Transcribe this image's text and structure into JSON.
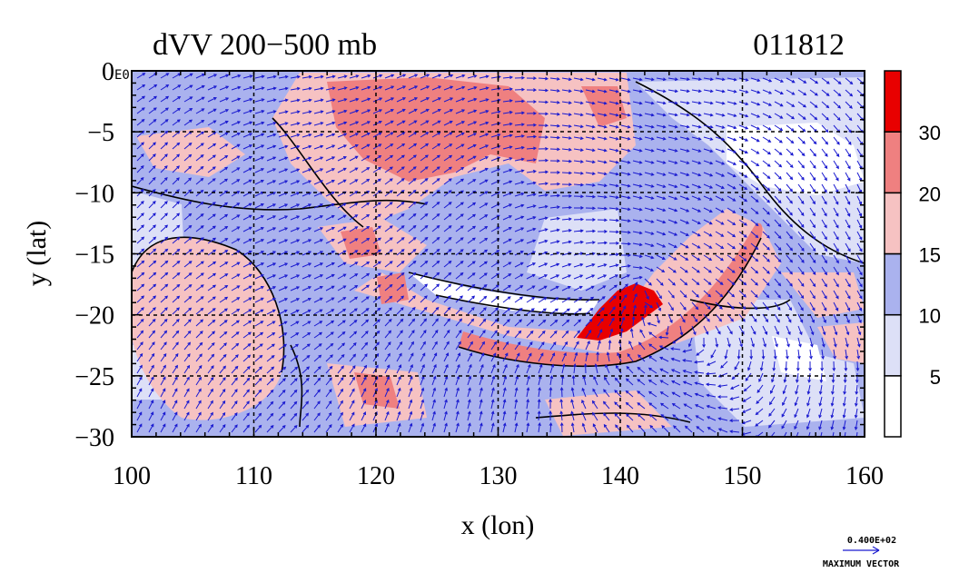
{
  "title": {
    "variable": "dVV 200−500 mb",
    "date": "011812"
  },
  "axes": {
    "xlabel": "x (lon)",
    "ylabel": "y (lat)",
    "xlim": [
      100,
      160
    ],
    "ylim": [
      -30,
      0
    ],
    "xticks": [
      "100",
      "110",
      "120",
      "130",
      "140",
      "150",
      "160"
    ],
    "yticks": [
      "0",
      "−5",
      "−10",
      "−15",
      "−20",
      "−25",
      "−30"
    ],
    "gridlines": "dashed, every 10° lon / 5° lat"
  },
  "field_label": "E0",
  "colorbar": {
    "levels": [
      "5",
      "10",
      "15",
      "20",
      "30"
    ],
    "colors": [
      "#ffffff",
      "#dde0f7",
      "#aab2ee",
      "#f6c2c2",
      "#ef8080",
      "#e80000"
    ]
  },
  "vector_key": {
    "magnitude": "0.400E+02",
    "label": "MAXIMUM VECTOR"
  },
  "palette": {
    "blue_light": "#dde0f7",
    "blue": "#aab2ee",
    "pink": "#f6c2c2",
    "red": "#ef8080",
    "dark_red": "#e80000",
    "arrow": "#1a1ad0"
  }
}
